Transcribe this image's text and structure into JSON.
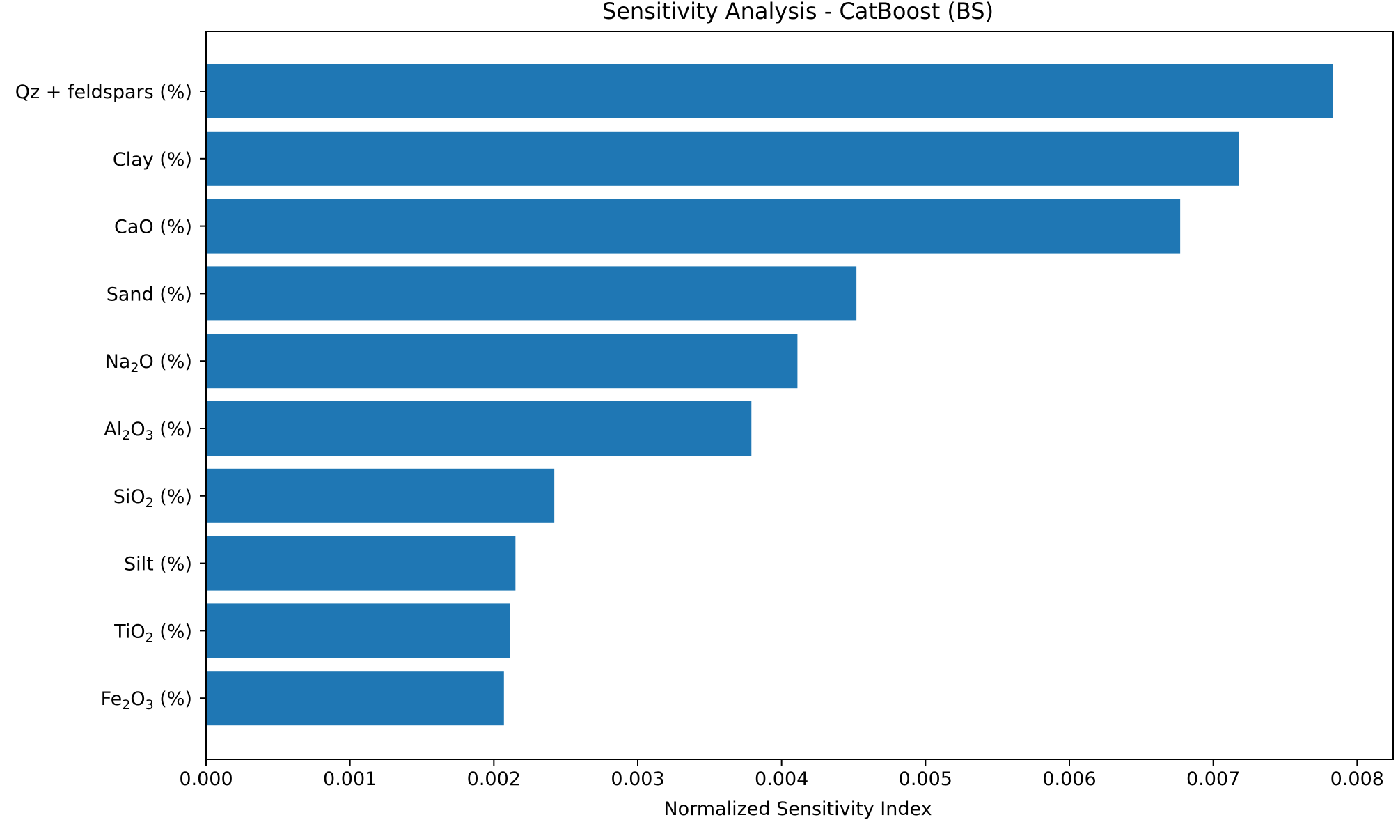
{
  "chart_data": {
    "type": "bar",
    "orientation": "horizontal",
    "title": "Sensitivity Analysis - CatBoost (BS)",
    "xlabel": "Normalized Sensitivity Index",
    "ylabel": "",
    "xlim": [
      0,
      0.00825
    ],
    "xticks": [
      "0.000",
      "0.001",
      "0.002",
      "0.003",
      "0.004",
      "0.005",
      "0.006",
      "0.007",
      "0.008"
    ],
    "bar_color": "#1f77b4",
    "grid": false,
    "legend": "none",
    "categories": [
      {
        "base": "Qz + feldspars (%)",
        "sub": "",
        "tail": ""
      },
      {
        "base": "Clay (%)",
        "sub": "",
        "tail": ""
      },
      {
        "base": "CaO (%)",
        "sub": "",
        "tail": ""
      },
      {
        "base": "Sand (%)",
        "sub": "",
        "tail": ""
      },
      {
        "base": "Na",
        "sub": "2",
        "tail": "O (%)"
      },
      {
        "base": "Al",
        "sub": "2",
        "tail": "O3 (%)"
      },
      {
        "base": "SiO",
        "sub": "2",
        "tail": " (%)"
      },
      {
        "base": "Silt (%)",
        "sub": "",
        "tail": ""
      },
      {
        "base": "TiO",
        "sub": "2",
        "tail": " (%)"
      },
      {
        "base": "Fe",
        "sub": "2",
        "tail": "O3 (%)"
      }
    ],
    "values": [
      0.00783,
      0.00718,
      0.00677,
      0.00452,
      0.00411,
      0.00379,
      0.00242,
      0.00215,
      0.00211,
      0.00207
    ]
  }
}
